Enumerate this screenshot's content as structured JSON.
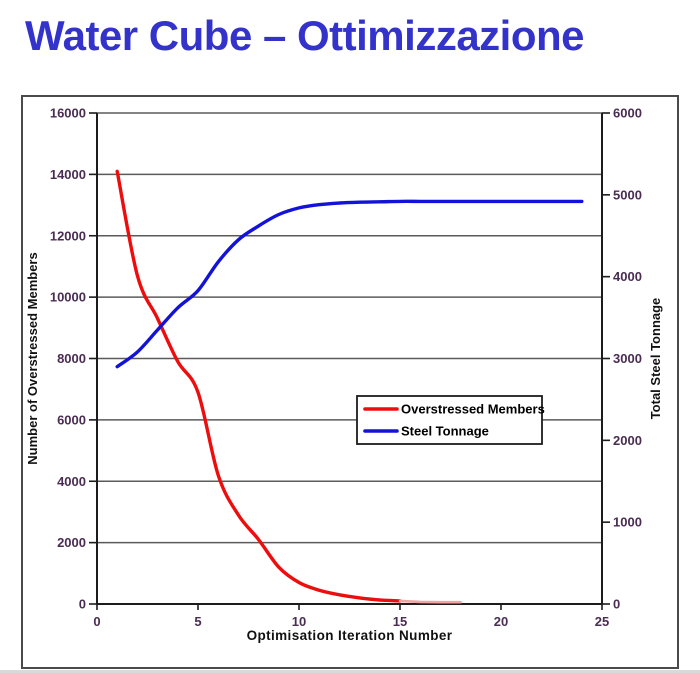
{
  "page": {
    "title": "Water Cube – Ottimizzazione"
  },
  "colors": {
    "title": "#3333cc",
    "tick_label": "#4a2d52",
    "axis_line": "#1c1c1c",
    "grid_line": "#5a5a5a",
    "frame_border": "#4a4a4a",
    "axis_title": "#111111",
    "legend_border": "#1c1c1c",
    "legend_bg": "#ffffff",
    "background": "#ffffff"
  },
  "chart_data": {
    "type": "line",
    "title": "Water Cube – Ottimizzazione",
    "xlabel": "Optimisation Iteration Number",
    "ylabel_left": "Number of Overstressed Members",
    "ylabel_right": "Total Steel Tonnage",
    "xlim": [
      0,
      25
    ],
    "ylim_left": [
      0,
      16000
    ],
    "ylim_right": [
      0,
      6000
    ],
    "x_ticks": [
      0,
      5,
      10,
      15,
      20,
      25
    ],
    "yleft_ticks": [
      0,
      2000,
      4000,
      6000,
      8000,
      10000,
      12000,
      14000,
      16000
    ],
    "yright_ticks": [
      0,
      1000,
      2000,
      3000,
      4000,
      5000,
      6000
    ],
    "grid": "horizontal",
    "legend": {
      "position": "middle-right",
      "entries": [
        {
          "label": "Overstressed Members",
          "color": "#ee0d0d"
        },
        {
          "label": "Steel Tonnage",
          "color": "#1212d8"
        }
      ]
    },
    "series": [
      {
        "name": "Overstressed Members",
        "axis": "left",
        "color": "#ee0d0d",
        "x": [
          1,
          2,
          3,
          4,
          5,
          6,
          7,
          8,
          9,
          10,
          11,
          12,
          13,
          14,
          15,
          16,
          17,
          18
        ],
        "values": [
          14100,
          10700,
          9300,
          7900,
          6900,
          4200,
          2900,
          2100,
          1200,
          700,
          450,
          300,
          200,
          130,
          100,
          70,
          60,
          60
        ],
        "tail": {
          "from_x": 15,
          "color": "#f2a3a3"
        }
      },
      {
        "name": "Steel Tonnage",
        "axis": "right",
        "color": "#1212d8",
        "x": [
          1,
          2,
          3,
          4,
          5,
          6,
          7,
          8,
          9,
          10,
          11,
          12,
          13,
          14,
          15,
          16,
          17,
          18,
          19,
          20,
          21,
          22,
          23,
          24
        ],
        "values": [
          2900,
          3080,
          3350,
          3620,
          3830,
          4180,
          4450,
          4620,
          4760,
          4840,
          4880,
          4900,
          4910,
          4915,
          4920,
          4920,
          4920,
          4920,
          4920,
          4920,
          4920,
          4920,
          4920,
          4920
        ]
      }
    ]
  }
}
